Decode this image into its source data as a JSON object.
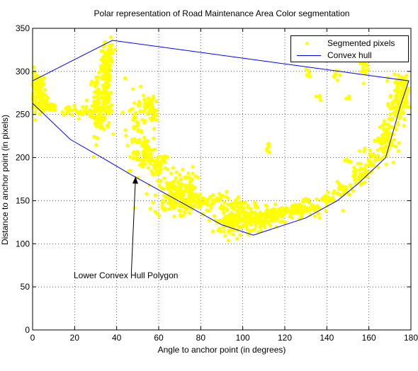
{
  "chart_data": {
    "type": "scatter",
    "title": "Polar representation of Road Maintenance Area Color segmentation",
    "xlabel": "Angle to anchor point (in degrees)",
    "ylabel": "Distance to anchor point (in pixels)",
    "xlim": [
      0,
      180
    ],
    "ylim": [
      0,
      350
    ],
    "xticks": [
      0,
      20,
      40,
      60,
      80,
      100,
      120,
      140,
      160,
      180
    ],
    "yticks": [
      0,
      50,
      100,
      150,
      200,
      250,
      300,
      350
    ],
    "grid": true,
    "legend_position": "top-right",
    "series": [
      {
        "name": "Segmented pixels",
        "kind": "scatter",
        "color": "#ffff00",
        "clusters": [
          {
            "x": 2,
            "y": 275,
            "sx": 2.2,
            "sy": 12,
            "n": 120
          },
          {
            "x": 5,
            "y": 262,
            "sx": 1.5,
            "sy": 5,
            "n": 30
          },
          {
            "x": 10,
            "y": 259,
            "sx": 1.5,
            "sy": 3,
            "n": 15
          },
          {
            "x": 17,
            "y": 256,
            "sx": 2,
            "sy": 3,
            "n": 20
          },
          {
            "x": 24,
            "y": 252,
            "sx": 2,
            "sy": 3,
            "n": 20
          },
          {
            "x": 31,
            "y": 262,
            "sx": 1.8,
            "sy": 18,
            "n": 90
          },
          {
            "x": 35,
            "y": 258,
            "sx": 1.5,
            "sy": 12,
            "n": 50
          },
          {
            "x": 35,
            "y": 300,
            "sx": 1.6,
            "sy": 16,
            "n": 90
          },
          {
            "x": 37,
            "y": 320,
            "sx": 1,
            "sy": 8,
            "n": 30
          },
          {
            "x": 50,
            "y": 230,
            "sx": 2.5,
            "sy": 22,
            "n": 80
          },
          {
            "x": 54,
            "y": 206,
            "sx": 1.8,
            "sy": 8,
            "n": 50
          },
          {
            "x": 57,
            "y": 255,
            "sx": 1.2,
            "sy": 12,
            "n": 40
          },
          {
            "x": 60,
            "y": 190,
            "sx": 2,
            "sy": 6,
            "n": 40
          },
          {
            "x": 66,
            "y": 155,
            "sx": 4,
            "sy": 12,
            "n": 110
          },
          {
            "x": 72,
            "y": 165,
            "sx": 3,
            "sy": 12,
            "n": 60
          },
          {
            "x": 74,
            "y": 145,
            "sx": 3,
            "sy": 6,
            "n": 40
          },
          {
            "x": 84,
            "y": 148,
            "sx": 5,
            "sy": 6,
            "n": 60
          },
          {
            "x": 93,
            "y": 125,
            "sx": 3,
            "sy": 5,
            "n": 60
          },
          {
            "x": 100,
            "y": 132,
            "sx": 5,
            "sy": 10,
            "n": 120
          },
          {
            "x": 108,
            "y": 128,
            "sx": 4,
            "sy": 6,
            "n": 70
          },
          {
            "x": 118,
            "y": 135,
            "sx": 6,
            "sy": 4,
            "n": 70
          },
          {
            "x": 130,
            "y": 140,
            "sx": 6,
            "sy": 4,
            "n": 60
          },
          {
            "x": 140,
            "y": 152,
            "sx": 2,
            "sy": 3,
            "n": 20
          },
          {
            "x": 148,
            "y": 162,
            "sx": 2,
            "sy": 4,
            "n": 30
          },
          {
            "x": 156,
            "y": 180,
            "sx": 2.5,
            "sy": 5,
            "n": 40
          },
          {
            "x": 161,
            "y": 200,
            "sx": 1.8,
            "sy": 6,
            "n": 25
          },
          {
            "x": 168,
            "y": 220,
            "sx": 2.2,
            "sy": 12,
            "n": 90
          },
          {
            "x": 174,
            "y": 265,
            "sx": 2,
            "sy": 15,
            "n": 110
          },
          {
            "x": 177,
            "y": 280,
            "sx": 1,
            "sy": 8,
            "n": 30
          },
          {
            "x": 158,
            "y": 305,
            "sx": 0.8,
            "sy": 8,
            "n": 20
          },
          {
            "x": 146,
            "y": 295,
            "sx": 1.5,
            "sy": 5,
            "n": 8
          },
          {
            "x": 112,
            "y": 212,
            "sx": 0.6,
            "sy": 6,
            "n": 8
          },
          {
            "x": 130,
            "y": 298,
            "sx": 2,
            "sy": 4,
            "n": 6
          },
          {
            "x": 136,
            "y": 272,
            "sx": 1,
            "sy": 3,
            "n": 4
          },
          {
            "x": 150,
            "y": 270,
            "sx": 1,
            "sy": 2,
            "n": 3
          },
          {
            "x": 44,
            "y": 292,
            "sx": 0.5,
            "sy": 1,
            "n": 2
          },
          {
            "x": 54,
            "y": 262,
            "sx": 1,
            "sy": 5,
            "n": 10
          },
          {
            "x": 130,
            "y": 150,
            "sx": 2,
            "sy": 2,
            "n": 8
          },
          {
            "x": 150,
            "y": 195,
            "sx": 0.8,
            "sy": 2,
            "n": 5
          },
          {
            "x": 63,
            "y": 200,
            "sx": 1,
            "sy": 2,
            "n": 8
          }
        ]
      },
      {
        "name": "Convex hull",
        "kind": "line",
        "color": "#0000ff",
        "x": [
          0,
          18,
          33,
          47,
          90,
          105,
          130,
          145,
          155,
          168,
          175,
          179,
          38,
          0,
          0
        ],
        "y": [
          263,
          221,
          200,
          180,
          122,
          110,
          130,
          150,
          170,
          200,
          260,
          289,
          336,
          289,
          263
        ]
      }
    ],
    "annotations": [
      {
        "text": "Lower Convex Hull Polygon",
        "x": 19,
        "y": 62,
        "arrow_to": [
          49,
          178
        ]
      }
    ]
  }
}
